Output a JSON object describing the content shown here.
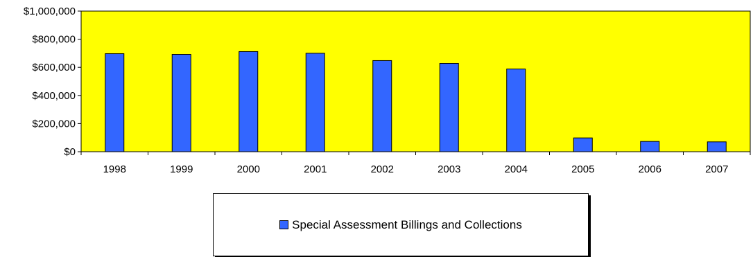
{
  "chart_data": {
    "type": "bar",
    "categories": [
      "1998",
      "1999",
      "2000",
      "2001",
      "2002",
      "2003",
      "2004",
      "2005",
      "2006",
      "2007"
    ],
    "series": [
      {
        "name": "Special Assessment Billings and Collections",
        "values": [
          697000,
          692000,
          712000,
          700000,
          648000,
          628000,
          588000,
          98000,
          73000,
          70000
        ]
      }
    ],
    "ylim": [
      0,
      1000000
    ],
    "yticks": [
      0,
      200000,
      400000,
      600000,
      800000,
      1000000
    ],
    "ytick_labels": [
      "$0",
      "$200,000",
      "$400,000",
      "$600,000",
      "$800,000",
      "$1,000,000"
    ],
    "grid": false,
    "legend_position": "bottom"
  },
  "colors": {
    "plot_background": "#ffff00",
    "bar_fill": "#3366ff",
    "bar_stroke": "#000000",
    "axis": "#000000"
  }
}
